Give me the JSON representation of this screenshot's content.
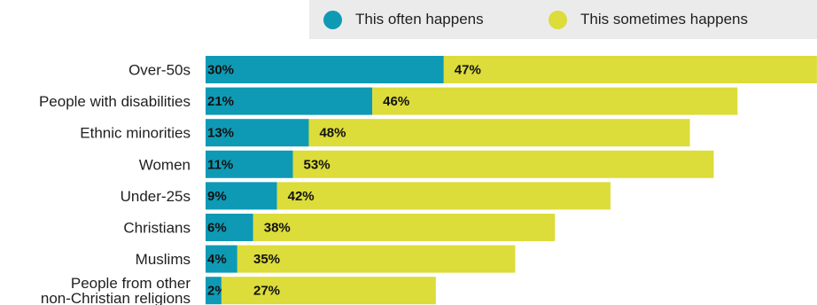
{
  "chart_data": {
    "type": "bar",
    "orientation": "horizontal",
    "stacked": true,
    "categories": [
      [
        "Over-50s"
      ],
      [
        "People with disabilities"
      ],
      [
        "Ethnic minorities"
      ],
      [
        "Women"
      ],
      [
        "Under-25s"
      ],
      [
        "Christians"
      ],
      [
        "Muslims"
      ],
      [
        "People from other",
        "non-Christian religions"
      ]
    ],
    "series": [
      {
        "name": "This often happens",
        "color": "#0e9ab4",
        "values": [
          30,
          21,
          13,
          11,
          9,
          6,
          4,
          2
        ],
        "labels": [
          "30%",
          "21%",
          "13%",
          "11%",
          "9%",
          "6%",
          "4%",
          "2%"
        ]
      },
      {
        "name": "This sometimes happens",
        "color": "#dcdc3a",
        "values": [
          47,
          46,
          48,
          53,
          42,
          38,
          35,
          27
        ],
        "labels": [
          "47%",
          "46%",
          "48%",
          "53%",
          "42%",
          "38%",
          "35%",
          "27%"
        ]
      }
    ],
    "xlim": [
      0,
      77
    ],
    "legend_position": "top-right",
    "grid": false
  }
}
